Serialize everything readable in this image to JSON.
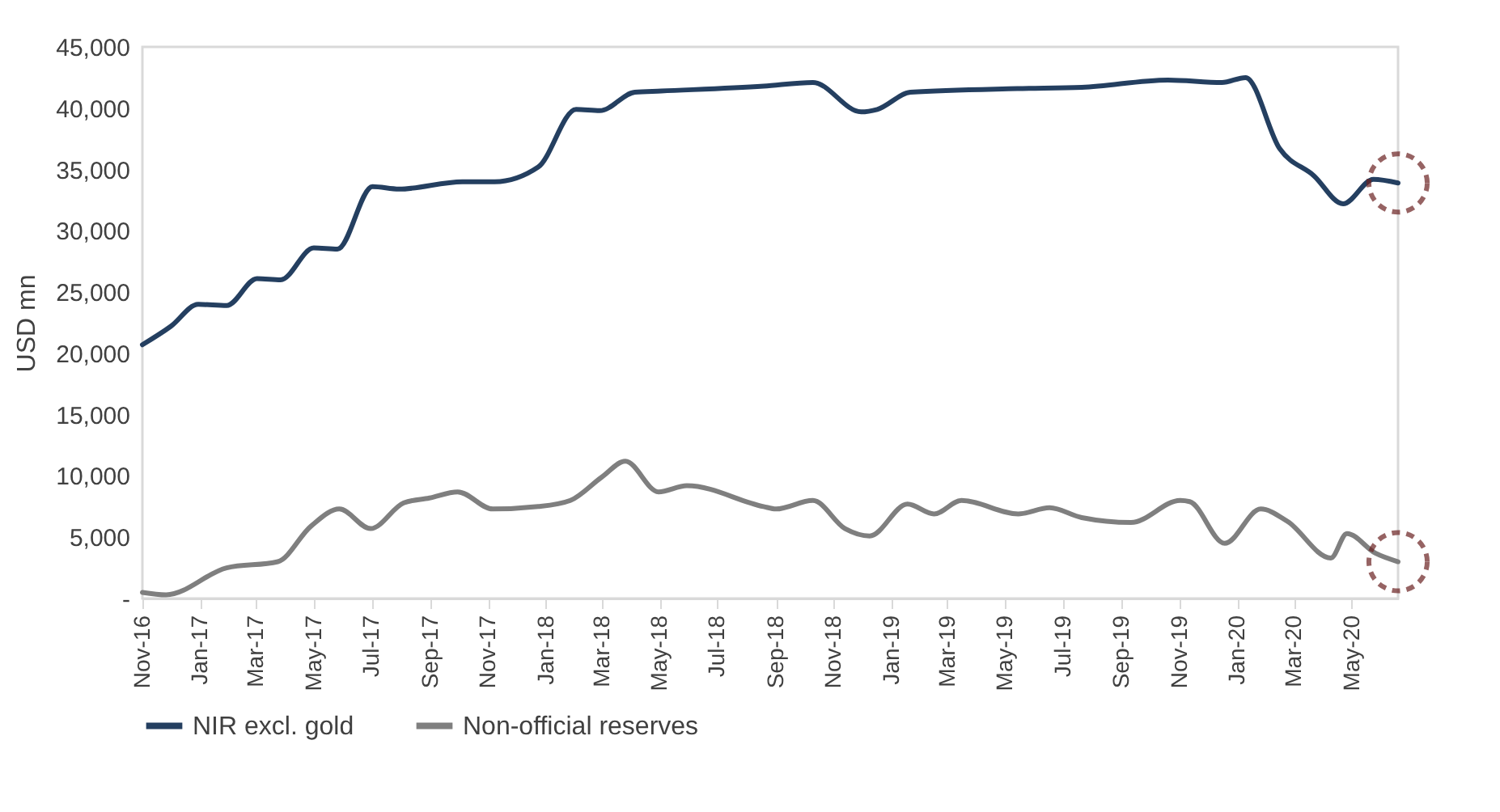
{
  "chart_data": {
    "type": "line",
    "ylabel": "USD mn",
    "xlim": [
      "2016-11-01",
      "2020-06-19"
    ],
    "ylim": [
      0,
      45000
    ],
    "xticks": [
      {
        "value": "2016-11-01",
        "label": "Nov-16"
      },
      {
        "value": "2017-01-01",
        "label": "Jan-17"
      },
      {
        "value": "2017-03-01",
        "label": "Mar-17"
      },
      {
        "value": "2017-05-01",
        "label": "May-17"
      },
      {
        "value": "2017-07-01",
        "label": "Jul-17"
      },
      {
        "value": "2017-09-01",
        "label": "Sep-17"
      },
      {
        "value": "2017-11-01",
        "label": "Nov-17"
      },
      {
        "value": "2018-01-01",
        "label": "Jan-18"
      },
      {
        "value": "2018-03-01",
        "label": "Mar-18"
      },
      {
        "value": "2018-05-01",
        "label": "May-18"
      },
      {
        "value": "2018-07-01",
        "label": "Jul-18"
      },
      {
        "value": "2018-09-01",
        "label": "Sep-18"
      },
      {
        "value": "2018-11-01",
        "label": "Nov-18"
      },
      {
        "value": "2019-01-01",
        "label": "Jan-19"
      },
      {
        "value": "2019-03-01",
        "label": "Mar-19"
      },
      {
        "value": "2019-05-01",
        "label": "May-19"
      },
      {
        "value": "2019-07-01",
        "label": "Jul-19"
      },
      {
        "value": "2019-09-01",
        "label": "Sep-19"
      },
      {
        "value": "2019-11-01",
        "label": "Nov-19"
      },
      {
        "value": "2020-01-01",
        "label": "Jan-20"
      },
      {
        "value": "2020-03-01",
        "label": "Mar-20"
      },
      {
        "value": "2020-05-01",
        "label": "May-20"
      }
    ],
    "yticks": [
      {
        "value": 0,
        "label": "-"
      },
      {
        "value": 5000,
        "label": "5,000"
      },
      {
        "value": 10000,
        "label": "10,000"
      },
      {
        "value": 15000,
        "label": "15,000"
      },
      {
        "value": 20000,
        "label": "20,000"
      },
      {
        "value": 25000,
        "label": "25,000"
      },
      {
        "value": 30000,
        "label": "30,000"
      },
      {
        "value": 35000,
        "label": "35,000"
      },
      {
        "value": 40000,
        "label": "40,000"
      },
      {
        "value": 45000,
        "label": "45,000"
      }
    ],
    "legend": "bottom",
    "line_style": "solid",
    "marker": "none",
    "series": [
      {
        "name": "NIR excl. gold",
        "color": "#243f60",
        "x": [
          "2016-11-01",
          "2016-12-01",
          "2016-12-30",
          "2017-01-29",
          "2017-03-02",
          "2017-03-27",
          "2017-05-01",
          "2017-05-26",
          "2017-07-02",
          "2017-07-30",
          "2017-10-05",
          "2017-11-08",
          "2017-12-24",
          "2018-02-02",
          "2018-02-27",
          "2018-04-05",
          "2018-05-03",
          "2018-08-19",
          "2018-10-10",
          "2018-11-30",
          "2018-12-17",
          "2019-01-21",
          "2019-05-14",
          "2019-07-21",
          "2019-10-20",
          "2019-12-16",
          "2020-01-10",
          "2020-02-15",
          "2020-03-22",
          "2020-04-22",
          "2020-05-24",
          "2020-06-19"
        ],
        "values": [
          20700,
          22200,
          24000,
          23900,
          26100,
          26000,
          28600,
          28500,
          33600,
          33400,
          34000,
          34000,
          35200,
          39900,
          39800,
          41300,
          41400,
          41800,
          42100,
          39700,
          39900,
          41300,
          41600,
          41700,
          42300,
          42100,
          42500,
          36700,
          34500,
          32200,
          34200,
          33900
        ]
      },
      {
        "name": "Non-official reserves",
        "color": "#7f7f7f",
        "x": [
          "2016-11-01",
          "2016-11-26",
          "2017-01-29",
          "2017-03-24",
          "2017-04-28",
          "2017-05-28",
          "2017-06-30",
          "2017-08-04",
          "2017-08-31",
          "2017-09-30",
          "2017-11-06",
          "2017-12-24",
          "2018-01-27",
          "2018-03-01",
          "2018-03-26",
          "2018-04-30",
          "2018-05-30",
          "2018-08-19",
          "2018-09-01",
          "2018-10-10",
          "2018-11-13",
          "2018-12-09",
          "2019-01-18",
          "2019-02-15",
          "2019-03-16",
          "2019-05-15",
          "2019-06-17",
          "2019-07-21",
          "2019-09-11",
          "2019-11-02",
          "2019-11-12",
          "2019-12-19",
          "2020-01-26",
          "2020-02-23",
          "2020-04-09",
          "2020-04-26",
          "2020-05-26",
          "2020-06-19"
        ],
        "values": [
          500,
          300,
          2500,
          3000,
          5900,
          7300,
          5700,
          7800,
          8200,
          8700,
          7300,
          7500,
          8000,
          9900,
          11200,
          8700,
          9200,
          7500,
          7300,
          8000,
          5700,
          5100,
          7700,
          6900,
          8000,
          6900,
          7400,
          6600,
          6200,
          8000,
          7900,
          4500,
          7300,
          6300,
          3300,
          5300,
          3700,
          3000
        ]
      }
    ]
  }
}
